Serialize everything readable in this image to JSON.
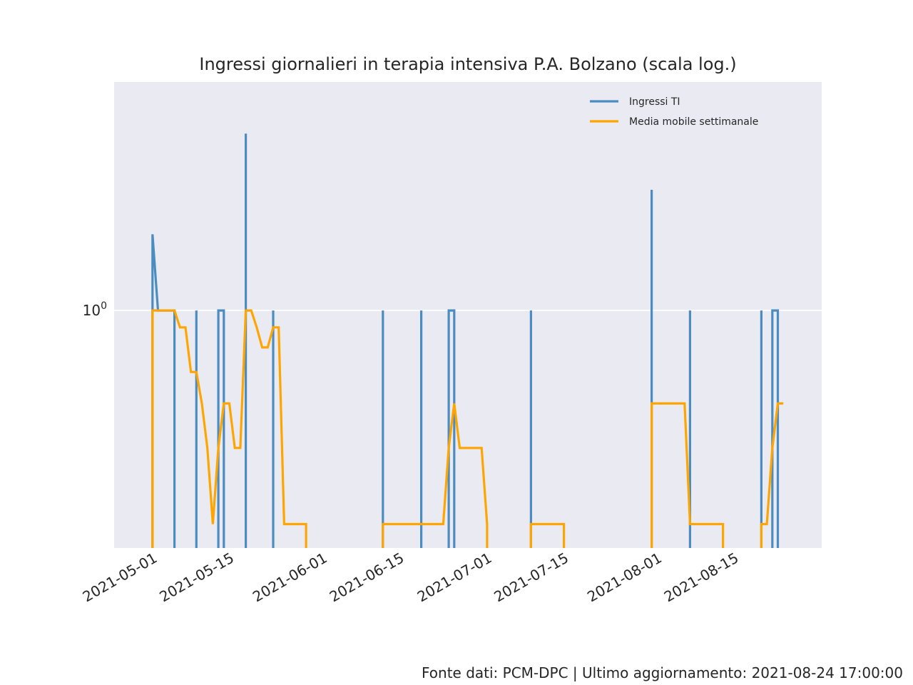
{
  "chart_data": {
    "type": "line",
    "title": "Ingressi giornalieri in terapia intensiva P.A. Bolzano (scala log.)",
    "xlabel": "",
    "ylabel": "",
    "x_scale": "date",
    "y_scale": "log",
    "ylim": [
      0.115,
      8.0
    ],
    "xlim": [
      "2021-04-24",
      "2021-08-31"
    ],
    "grid": true,
    "legend_position": "top-right",
    "x_ticks": [
      "2021-05-01",
      "2021-05-15",
      "2021-06-01",
      "2021-06-15",
      "2021-07-01",
      "2021-07-15",
      "2021-08-01",
      "2021-08-15"
    ],
    "y_ticks": [
      {
        "value": 1,
        "base": "10",
        "exponent": "0"
      }
    ],
    "colors": {
      "ingressi": "#4c8dc1",
      "media": "#ffa500",
      "plot_bg": "#eaeaf2",
      "grid": "#ffffff"
    },
    "series": [
      {
        "name": "Ingressi TI",
        "key": "ingressi",
        "points": [
          [
            "2021-05-01",
            0.01
          ],
          [
            "2021-05-01",
            2
          ],
          [
            "2021-05-02",
            1
          ],
          [
            "2021-05-05",
            1
          ],
          [
            "2021-05-05",
            0.01
          ],
          [
            "2021-05-09",
            0.01
          ],
          [
            "2021-05-09",
            1
          ],
          [
            "2021-05-09",
            0.01
          ],
          [
            "2021-05-13",
            0.01
          ],
          [
            "2021-05-13",
            1
          ],
          [
            "2021-05-14",
            1
          ],
          [
            "2021-05-14",
            0.01
          ],
          [
            "2021-05-18",
            0.01
          ],
          [
            "2021-05-18",
            5
          ],
          [
            "2021-05-18",
            0.01
          ],
          [
            "2021-05-23",
            0.01
          ],
          [
            "2021-05-23",
            1
          ],
          [
            "2021-05-23",
            0.01
          ],
          [
            "2021-06-12",
            0.01
          ],
          [
            "2021-06-12",
            1
          ],
          [
            "2021-06-12",
            0.01
          ],
          [
            "2021-06-19",
            0.01
          ],
          [
            "2021-06-19",
            1
          ],
          [
            "2021-06-19",
            0.01
          ],
          [
            "2021-06-24",
            0.01
          ],
          [
            "2021-06-24",
            1
          ],
          [
            "2021-06-25",
            1
          ],
          [
            "2021-06-25",
            0.01
          ],
          [
            "2021-07-09",
            0.01
          ],
          [
            "2021-07-09",
            1
          ],
          [
            "2021-07-09",
            0.01
          ],
          [
            "2021-07-31",
            0.01
          ],
          [
            "2021-07-31",
            3
          ],
          [
            "2021-07-31",
            0.01
          ],
          [
            "2021-08-07",
            0.01
          ],
          [
            "2021-08-07",
            1
          ],
          [
            "2021-08-07",
            0.01
          ],
          [
            "2021-08-20",
            0.01
          ],
          [
            "2021-08-20",
            1
          ],
          [
            "2021-08-20",
            0.01
          ],
          [
            "2021-08-22",
            0.01
          ],
          [
            "2021-08-22",
            1
          ],
          [
            "2021-08-23",
            1
          ],
          [
            "2021-08-23",
            0.01
          ]
        ]
      },
      {
        "name": "Media mobile settimanale",
        "key": "media",
        "points": [
          [
            "2021-05-01",
            0.01
          ],
          [
            "2021-05-01",
            1
          ],
          [
            "2021-05-05",
            1
          ],
          [
            "2021-05-06",
            0.857
          ],
          [
            "2021-05-07",
            0.857
          ],
          [
            "2021-05-08",
            0.571
          ],
          [
            "2021-05-09",
            0.571
          ],
          [
            "2021-05-10",
            0.429
          ],
          [
            "2021-05-11",
            0.286
          ],
          [
            "2021-05-12",
            0.143
          ],
          [
            "2021-05-13",
            0.286
          ],
          [
            "2021-05-14",
            0.429
          ],
          [
            "2021-05-15",
            0.429
          ],
          [
            "2021-05-16",
            0.286
          ],
          [
            "2021-05-17",
            0.286
          ],
          [
            "2021-05-18",
            1
          ],
          [
            "2021-05-19",
            1
          ],
          [
            "2021-05-20",
            0.857
          ],
          [
            "2021-05-21",
            0.714
          ],
          [
            "2021-05-22",
            0.714
          ],
          [
            "2021-05-23",
            0.857
          ],
          [
            "2021-05-24",
            0.857
          ],
          [
            "2021-05-25",
            0.143
          ],
          [
            "2021-05-29",
            0.143
          ],
          [
            "2021-05-29",
            0.01
          ],
          [
            "2021-06-12",
            0.01
          ],
          [
            "2021-06-12",
            0.143
          ],
          [
            "2021-06-23",
            0.143
          ],
          [
            "2021-06-24",
            0.286
          ],
          [
            "2021-06-25",
            0.429
          ],
          [
            "2021-06-26",
            0.286
          ],
          [
            "2021-06-30",
            0.286
          ],
          [
            "2021-07-01",
            0.143
          ],
          [
            "2021-07-01",
            0.01
          ],
          [
            "2021-07-09",
            0.01
          ],
          [
            "2021-07-09",
            0.143
          ],
          [
            "2021-07-15",
            0.143
          ],
          [
            "2021-07-15",
            0.01
          ],
          [
            "2021-07-31",
            0.01
          ],
          [
            "2021-07-31",
            0.429
          ],
          [
            "2021-08-06",
            0.429
          ],
          [
            "2021-08-07",
            0.143
          ],
          [
            "2021-08-13",
            0.143
          ],
          [
            "2021-08-13",
            0.01
          ],
          [
            "2021-08-20",
            0.01
          ],
          [
            "2021-08-20",
            0.143
          ],
          [
            "2021-08-21",
            0.143
          ],
          [
            "2021-08-22",
            0.286
          ],
          [
            "2021-08-23",
            0.429
          ],
          [
            "2021-08-24",
            0.429
          ]
        ]
      }
    ]
  },
  "footer": {
    "source": "Fonte dati: PCM-DPC | Ultimo aggiornamento: 2021-08-24 17:00:00"
  }
}
